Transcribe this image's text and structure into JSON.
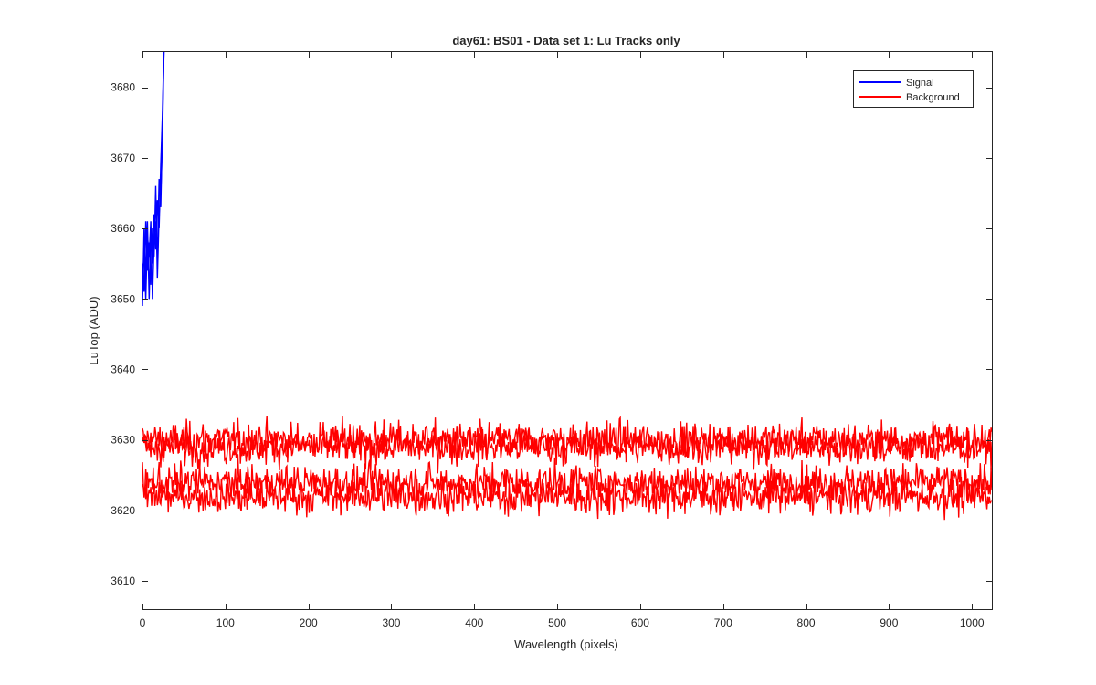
{
  "chart_data": {
    "type": "line",
    "title": "day61: BS01 - Data set 1: Lu Tracks only",
    "xlabel": "Wavelength (pixels)",
    "ylabel": "LuTop (ADU)",
    "xlim": [
      0,
      1024
    ],
    "ylim": [
      3606,
      3685
    ],
    "xticks": [
      0,
      100,
      200,
      300,
      400,
      500,
      600,
      700,
      800,
      900,
      1000
    ],
    "yticks": [
      3610,
      3620,
      3630,
      3640,
      3650,
      3660,
      3670,
      3680
    ],
    "grid": false,
    "legend_position": "top-right",
    "legend": [
      {
        "label": "Signal",
        "color": "#0000ff"
      },
      {
        "label": "Background",
        "color": "#ff0000"
      }
    ],
    "series": [
      {
        "name": "Signal",
        "color": "#0000ff",
        "x": [
          0,
          2,
          4,
          6,
          8,
          10,
          12,
          14,
          16,
          18,
          20,
          22,
          24,
          26
        ],
        "y": [
          3649,
          3660,
          3653,
          3661,
          3650,
          3659,
          3655,
          3662,
          3657,
          3664,
          3660,
          3669,
          3676,
          3686
        ]
      },
      {
        "name": "Signal",
        "color": "#0000ff",
        "x": [
          0,
          2,
          4,
          6,
          8,
          10,
          12,
          14,
          16,
          18,
          20,
          22,
          24,
          26
        ],
        "y": [
          3655,
          3651,
          3661,
          3654,
          3658,
          3652,
          3660,
          3656,
          3666,
          3653,
          3662,
          3665,
          3672,
          3686
        ]
      },
      {
        "name": "Signal",
        "color": "#0000ff",
        "x": [
          0,
          2,
          4,
          6,
          8,
          10,
          12,
          14,
          16,
          18,
          20,
          22,
          24,
          26
        ],
        "y": [
          3652,
          3657,
          3650,
          3659,
          3656,
          3661,
          3650,
          3658,
          3661,
          3656,
          3667,
          3663,
          3674,
          3686
        ]
      },
      {
        "name": "Background",
        "color": "#ff0000",
        "mean": 3630,
        "spread": 2.5,
        "x_range": [
          0,
          1024
        ],
        "y_min": 3625.5,
        "y_max": 3635
      },
      {
        "name": "Background",
        "color": "#ff0000",
        "mean": 3629,
        "spread": 2.5,
        "x_range": [
          0,
          1024
        ],
        "y_min": 3624.5,
        "y_max": 3634
      },
      {
        "name": "Background",
        "color": "#ff0000",
        "mean": 3624,
        "spread": 2.5,
        "x_range": [
          0,
          1024
        ],
        "y_min": 3618,
        "y_max": 3630
      },
      {
        "name": "Background",
        "color": "#ff0000",
        "mean": 3622,
        "spread": 2.5,
        "x_range": [
          0,
          1024
        ],
        "y_min": 3616.5,
        "y_max": 3628
      }
    ]
  }
}
